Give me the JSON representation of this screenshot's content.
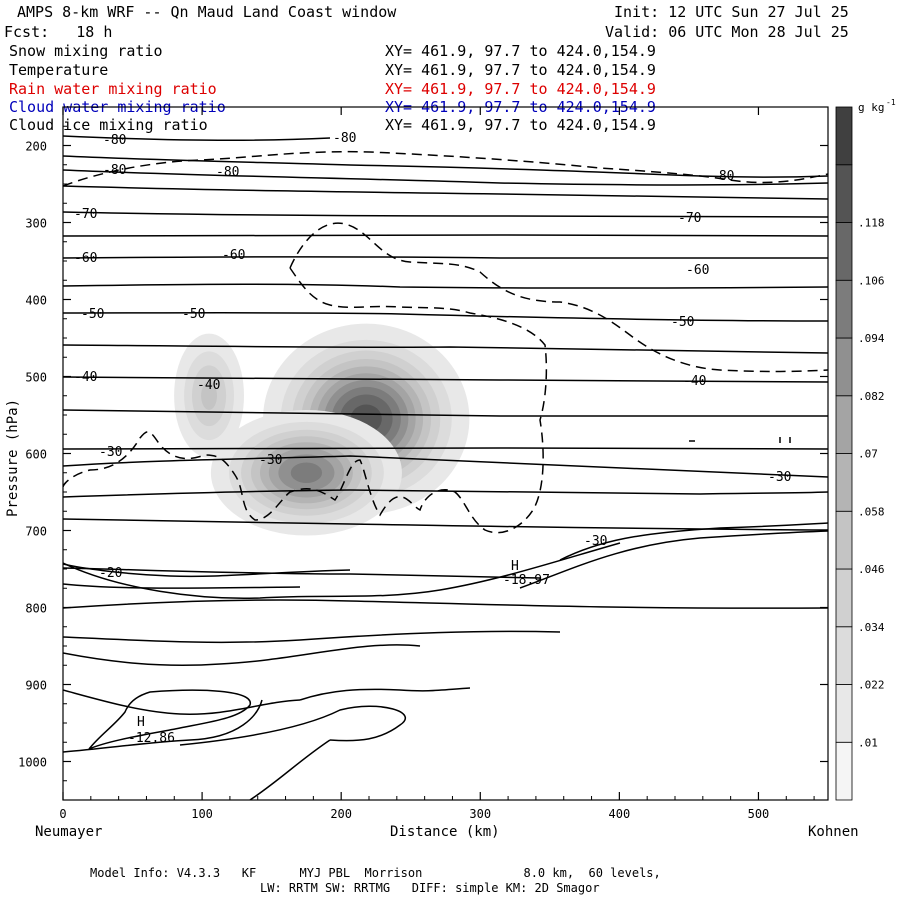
{
  "header": {
    "title": "AMPS 8-km WRF -- Qn Maud Land Coast window",
    "init": "Init: 12 UTC Sun 27 Jul 25",
    "fcst": "Fcst:   18 h",
    "valid": "Valid: 06 UTC Mon 28 Jul 25"
  },
  "fields": [
    {
      "label": "Snow mixing ratio",
      "xy": "XY= 461.9, 97.7 to 424.0,154.9",
      "color": "#000000"
    },
    {
      "label": "Temperature",
      "xy": "XY= 461.9, 97.7 to 424.0,154.9",
      "color": "#000000"
    },
    {
      "label": "Rain water mixing ratio",
      "xy": "XY= 461.9, 97.7 to 424.0,154.9",
      "color": "#dd0000"
    },
    {
      "label": "Cloud water mixing ratio",
      "xy": "XY= 461.9, 97.7 to 424.0,154.9",
      "color": "#0000bb"
    },
    {
      "label": "Cloud ice mixing ratio",
      "xy": "XY= 461.9, 97.7 to 424.0,154.9",
      "color": "#000000"
    }
  ],
  "footer": {
    "line1": "Model Info: V4.3.3   KF      MYJ PBL  Morrison              8.0 km,  60 levels,",
    "line2": "LW: RRTM SW: RRTMG   DIFF: simple KM: 2D Smagor"
  },
  "chart_data": {
    "type": "contour",
    "xlabel": "Distance (km)",
    "ylabel": "Pressure (hPa)",
    "x_left_label": "Neumayer",
    "x_right_label": "Kohnen",
    "xlim": [
      0,
      550
    ],
    "ylim": [
      1050,
      150
    ],
    "x_ticks": [
      0,
      100,
      200,
      300,
      400,
      500
    ],
    "y_ticks": [
      200,
      300,
      400,
      500,
      600,
      700,
      800,
      900,
      1000
    ],
    "colorbar": {
      "unit": "g kg",
      "unit_exp": "-1",
      "levels": [
        ".01",
        ".022",
        ".034",
        ".046",
        ".058",
        ".07",
        ".082",
        ".094",
        ".106",
        ".118"
      ],
      "shades": [
        "#f5f5f5",
        "#e8e8e8",
        "#dcdcdc",
        "#d0d0d0",
        "#c4c4c4",
        "#b4b4b4",
        "#a4a4a4",
        "#909090",
        "#7c7c7c",
        "#686868",
        "#545454",
        "#404040"
      ]
    },
    "snow_blobs": [
      {
        "x": 105,
        "p": 525,
        "sx": 14,
        "sp": 45,
        "level": 0.05
      },
      {
        "x": 218,
        "p": 555,
        "sx": 33,
        "sp": 55,
        "level": 0.125
      },
      {
        "x": 175,
        "p": 625,
        "sx": 32,
        "sp": 38,
        "level": 0.1
      }
    ],
    "temperature_contours": [
      {
        "value": -80,
        "labels": [
          "-80",
          "-80",
          "-80",
          "-80"
        ]
      },
      {
        "value": -70,
        "labels": [
          "-70",
          "-70"
        ]
      },
      {
        "value": -60,
        "labels": [
          "-60",
          "-60",
          "-60"
        ]
      },
      {
        "value": -50,
        "labels": [
          "-50",
          "-50",
          "-50"
        ]
      },
      {
        "value": -40,
        "labels": [
          "-40",
          "-40",
          "-40"
        ]
      },
      {
        "value": -30,
        "labels": [
          "-30",
          "-30",
          "-30",
          "-30"
        ]
      },
      {
        "value": -20,
        "labels": [
          "-20"
        ]
      }
    ],
    "highs": [
      {
        "label": "H",
        "value": "-12.86",
        "x": 57,
        "p": 950
      },
      {
        "label": "H",
        "value": "-18.97",
        "x": 325,
        "p": 738
      }
    ]
  }
}
